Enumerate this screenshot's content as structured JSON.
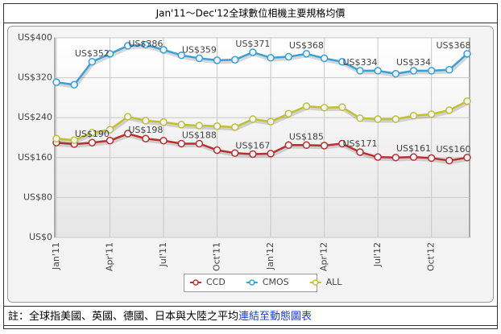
{
  "chart_data": {
    "type": "line",
    "title": "Jan'11～Dec'12全球數位相機主要規格均價",
    "categories": [
      "Jan'11",
      null,
      null,
      "Apr'11",
      null,
      null,
      "Jul'11",
      null,
      null,
      "Oct'11",
      null,
      null,
      "Jan'12",
      null,
      null,
      "Apr'12",
      null,
      null,
      "Jul'12",
      null,
      null,
      "Oct'12",
      null,
      null
    ],
    "series": [
      {
        "name": "CCD",
        "color": "#b8312f",
        "values": [
          190,
          187,
          190,
          194,
          208,
          198,
          194,
          188,
          188,
          175,
          169,
          167,
          168,
          185,
          185,
          184,
          188,
          171,
          161,
          160,
          161,
          159,
          154,
          160
        ],
        "value_labels": [
          null,
          null,
          "US$190",
          null,
          null,
          "US$198",
          null,
          null,
          "US$188",
          null,
          null,
          "US$167",
          null,
          null,
          "US$185",
          null,
          null,
          "US$171",
          null,
          null,
          "US$161",
          null,
          null,
          "US$160"
        ]
      },
      {
        "name": "CMOS",
        "color": "#3a9fd6",
        "values": [
          311,
          306,
          352,
          368,
          384,
          386,
          376,
          365,
          359,
          355,
          356,
          371,
          360,
          362,
          368,
          359,
          352,
          334,
          334,
          328,
          334,
          334,
          336,
          368
        ],
        "value_labels": [
          null,
          null,
          "US$352",
          null,
          null,
          "US$386",
          null,
          null,
          "US$359",
          null,
          null,
          "US$371",
          null,
          null,
          "US$368",
          null,
          null,
          "US$334",
          null,
          null,
          "US$334",
          null,
          null,
          "US$368"
        ]
      },
      {
        "name": "ALL",
        "color": "#c3bf35",
        "values": [
          198,
          195,
          210,
          216,
          242,
          234,
          231,
          226,
          224,
          223,
          221,
          237,
          232,
          248,
          263,
          260,
          261,
          239,
          237,
          237,
          244,
          247,
          255,
          273
        ]
      }
    ],
    "ylim": [
      0,
      400
    ],
    "yticks": [
      {
        "value": 0,
        "label": "US$0"
      },
      {
        "value": 80,
        "label": "US$80"
      },
      {
        "value": 160,
        "label": "US$160"
      },
      {
        "value": 240,
        "label": "US$240"
      },
      {
        "value": 320,
        "label": "US$320"
      },
      {
        "value": 400,
        "label": "US$400"
      }
    ],
    "grid": true
  },
  "footer": {
    "note": "註：全球指美國、英國、德國、日本與大陸之平均",
    "link": "連結至動態圖表"
  }
}
